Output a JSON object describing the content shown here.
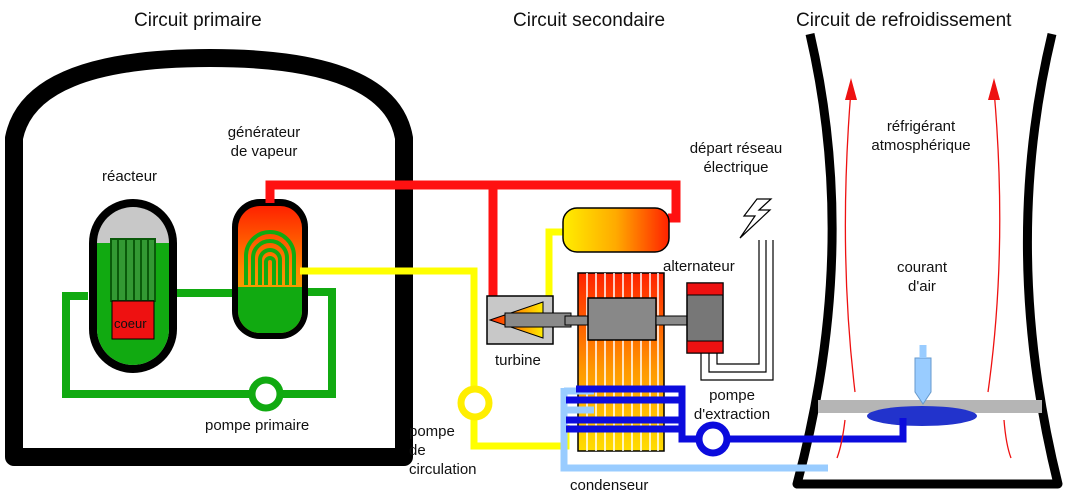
{
  "headers": {
    "primary": "Circuit primaire",
    "secondary": "Circuit secondaire",
    "cooling": "Circuit de refroidissement"
  },
  "labels": {
    "reactor": "réacteur",
    "core": "coeur",
    "steam_generator_1": "générateur",
    "steam_generator_2": "de vapeur",
    "primary_pump": "pompe primaire",
    "turbine": "turbine",
    "alternator": "alternateur",
    "grid_1": "départ réseau",
    "grid_2": "électrique",
    "circulation_pump_1": "pompe",
    "circulation_pump_2": "de",
    "circulation_pump_3": "circulation",
    "extraction_pump_1": "pompe",
    "extraction_pump_2": "d'extraction",
    "condenser": "condenseur",
    "refrigerant_1": "réfrigérant",
    "refrigerant_2": "atmosphérique",
    "airflow_1": "courant",
    "airflow_2": "d'air"
  },
  "colors": {
    "primary_loop": "#11aa11",
    "steam": "#ff1111",
    "feedwater": "#ffff00",
    "cooling_water": "#0b0bdd",
    "cold_water": "#99ccff",
    "air_arrows": "#ee1111",
    "containment": "#000000"
  }
}
